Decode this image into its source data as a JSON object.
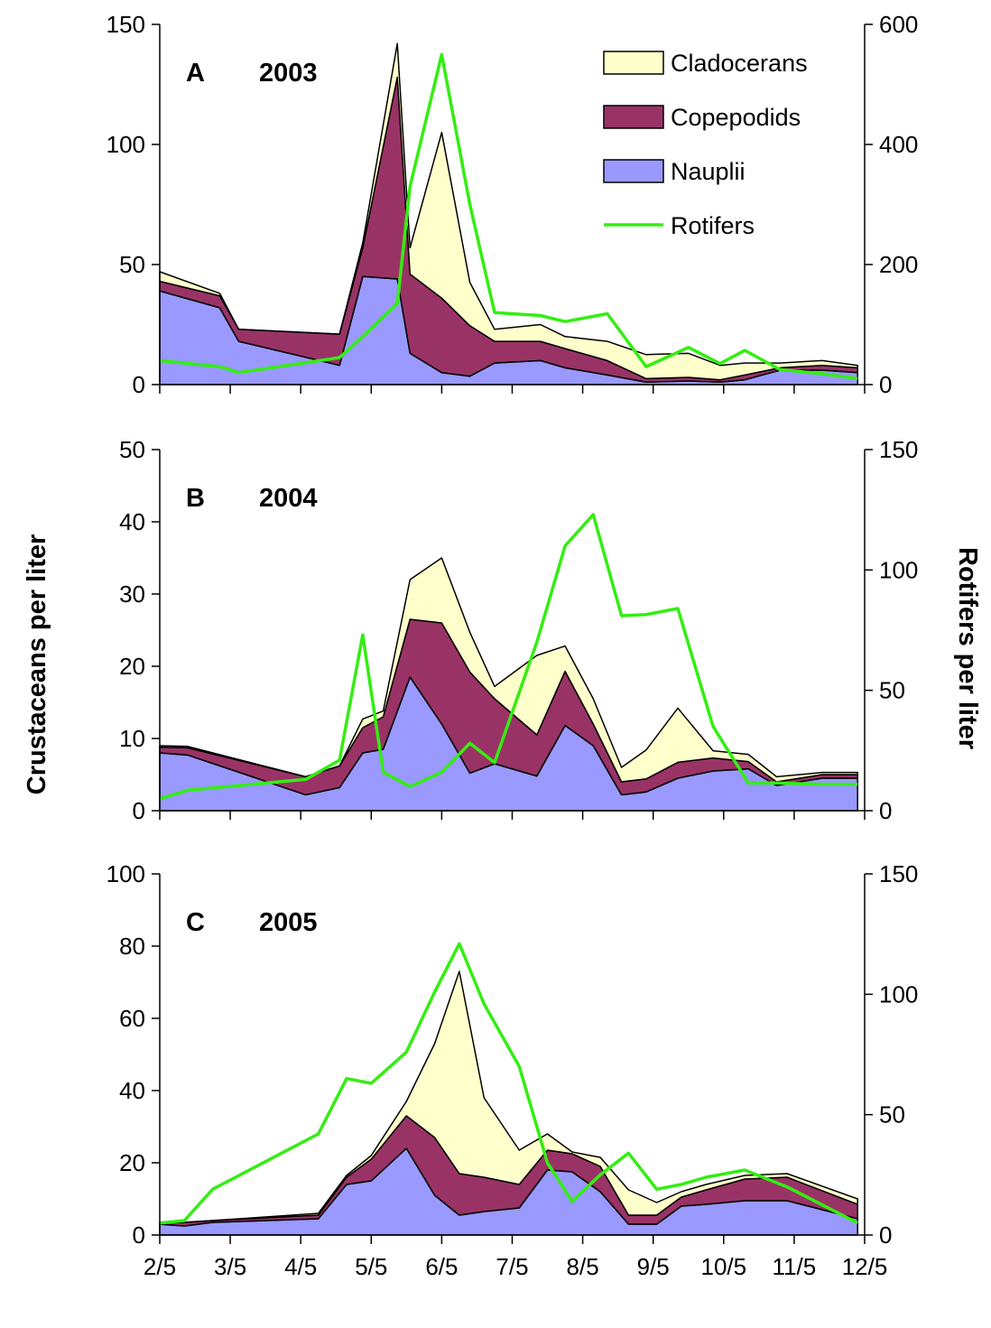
{
  "colors": {
    "cladocerans": "#FFFFCC",
    "copepodids": "#993366",
    "nauplii": "#9999FF",
    "rotifers": "#33EE11",
    "outline": "#000000"
  },
  "legend": {
    "items": [
      {
        "label": "Cladocerans",
        "key": "cladocerans",
        "kind": "area"
      },
      {
        "label": "Copepodids",
        "key": "copepodids",
        "kind": "area"
      },
      {
        "label": "Nauplii",
        "key": "nauplii",
        "kind": "area"
      },
      {
        "label": "Rotifers",
        "key": "rotifers",
        "kind": "line"
      }
    ]
  },
  "chart_data": {
    "type": "area",
    "ylabel_left": "Crustaceans per liter",
    "ylabel_right": "Rotifers per liter",
    "x_ticks": [
      "2/5",
      "3/5",
      "4/5",
      "5/5",
      "6/5",
      "7/5",
      "8/5",
      "9/5",
      "10/5",
      "11/5",
      "12/5"
    ],
    "x_range": [
      0,
      10
    ],
    "panels": [
      {
        "label": "A",
        "year": "2003",
        "ylim_left": [
          0,
          150
        ],
        "yticks_left": [
          "0",
          "50",
          "100",
          "150"
        ],
        "ylim_right": [
          0,
          600
        ],
        "yticks_right": [
          "0",
          "200",
          "400",
          "600"
        ],
        "x": [
          0.0,
          0.85,
          1.12,
          2.55,
          2.88,
          3.37,
          3.55,
          4.0,
          4.4,
          4.75,
          5.4,
          5.75,
          6.35,
          6.9,
          7.5,
          7.95,
          8.3,
          8.8,
          9.4,
          9.9
        ],
        "series": [
          {
            "name": "Nauplii",
            "key": "nauplii",
            "values": [
              39,
              32,
              18,
              8,
              45,
              44,
              13,
              5,
              3.5,
              9,
              10,
              7,
              4,
              1,
              1.5,
              1,
              2,
              6,
              6,
              5
            ]
          },
          {
            "name": "Copepodids",
            "key": "copepodids",
            "values": [
              4,
              5,
              5,
              13,
              12,
              84,
              33,
              31,
              21,
              9,
              8,
              8,
              6,
              1.5,
              1.5,
              1,
              2,
              1,
              2,
              2
            ]
          },
          {
            "name": "Cladocerans",
            "key": "cladocerans",
            "values": [
              4,
              1,
              0,
              0,
              2,
              14,
              11,
              69,
              18,
              5,
              7,
              5,
              8,
              10,
              10,
              6,
              5,
              2,
              2,
              1
            ]
          },
          {
            "name": "Rotifers",
            "key": "rotifers",
            "axis": "right",
            "values": [
              40,
              30,
              20,
              45,
              80,
              135,
              330,
              550,
              300,
              120,
              115,
              105,
              118,
              30,
              62,
              35,
              57,
              25,
              18,
              10
            ]
          }
        ]
      },
      {
        "label": "B",
        "year": "2004",
        "ylim_left": [
          0,
          50
        ],
        "yticks_left": [
          "0",
          "10",
          "20",
          "30",
          "40",
          "50"
        ],
        "ylim_right": [
          0,
          150
        ],
        "yticks_right": [
          "0",
          "50",
          "100",
          "150"
        ],
        "x": [
          0.0,
          0.4,
          2.07,
          2.55,
          2.88,
          3.17,
          3.55,
          4.0,
          4.4,
          4.75,
          5.35,
          5.75,
          6.15,
          6.55,
          6.9,
          7.35,
          7.85,
          8.35,
          8.75,
          9.4,
          9.9
        ],
        "series": [
          {
            "name": "Nauplii",
            "key": "nauplii",
            "values": [
              8,
              7.7,
              2.2,
              3.2,
              8,
              8.5,
              18.5,
              12,
              5.2,
              6.5,
              4.8,
              11.8,
              9,
              2.2,
              2.6,
              4.5,
              5.5,
              5.8,
              3.5,
              4.5,
              4.5
            ]
          },
          {
            "name": "Copepodids",
            "key": "copepodids",
            "values": [
              0.8,
              1,
              2.5,
              3,
              3.5,
              4.5,
              8,
              14,
              14,
              9,
              5.7,
              7.5,
              3,
              1.8,
              1.8,
              2.2,
              1.8,
              1,
              0.5,
              0.5,
              0.5
            ]
          },
          {
            "name": "Cladocerans",
            "key": "cladocerans",
            "values": [
              0.2,
              0.2,
              0,
              0,
              1.2,
              0.8,
              5.5,
              9,
              5.5,
              1.7,
              11,
              3.5,
              3.5,
              2,
              4,
              7.5,
              1,
              1,
              0.7,
              0.3,
              0.3
            ]
          },
          {
            "name": "Rotifers",
            "key": "rotifers",
            "axis": "right",
            "values": [
              5,
              8.5,
              13,
              21,
              73,
              16,
              10,
              16,
              28,
              20,
              70,
              110,
              123,
              81,
              81.5,
              84,
              35,
              11.5,
              11.5,
              11,
              11
            ]
          }
        ]
      },
      {
        "label": "C",
        "year": "2005",
        "ylim_left": [
          0,
          100
        ],
        "yticks_left": [
          "0",
          "20",
          "40",
          "60",
          "80",
          "100"
        ],
        "ylim_right": [
          0,
          150
        ],
        "yticks_right": [
          "0",
          "50",
          "100",
          "150"
        ],
        "x": [
          0.0,
          0.35,
          0.75,
          2.25,
          2.65,
          3.0,
          3.5,
          3.9,
          4.25,
          4.6,
          5.1,
          5.5,
          5.85,
          6.25,
          6.65,
          7.05,
          7.4,
          7.75,
          8.3,
          8.9,
          9.9
        ],
        "series": [
          {
            "name": "Nauplii",
            "key": "nauplii",
            "values": [
              3,
              2.5,
              3.5,
              4.5,
              14,
              15,
              24,
              11,
              5.5,
              6.5,
              7.5,
              18,
              17.5,
              12,
              3,
              3,
              8,
              8.5,
              9.5,
              9.5,
              4.5
            ]
          },
          {
            "name": "Copepodids",
            "key": "copepodids",
            "values": [
              0.5,
              1,
              0.5,
              1,
              2,
              6,
              9,
              16,
              11.5,
              9.5,
              6.5,
              5.5,
              5,
              7,
              2.5,
              2.5,
              2.5,
              4,
              6,
              6.5,
              4
            ]
          },
          {
            "name": "Cladocerans",
            "key": "cladocerans",
            "values": [
              0,
              0,
              0,
              0.5,
              0.5,
              1,
              4,
              26,
              56,
              22,
              9.5,
              4.5,
              0.5,
              2.5,
              7,
              3.5,
              1.5,
              1.5,
              1,
              1,
              1.5
            ]
          },
          {
            "name": "Rotifers",
            "key": "rotifers",
            "axis": "right",
            "values": [
              5,
              6,
              19,
              42,
              65,
              63,
              76,
              101,
              121,
              96,
              70,
              30,
              14,
              25,
              34,
              19,
              21,
              24,
              27,
              20,
              5
            ]
          }
        ]
      }
    ]
  }
}
